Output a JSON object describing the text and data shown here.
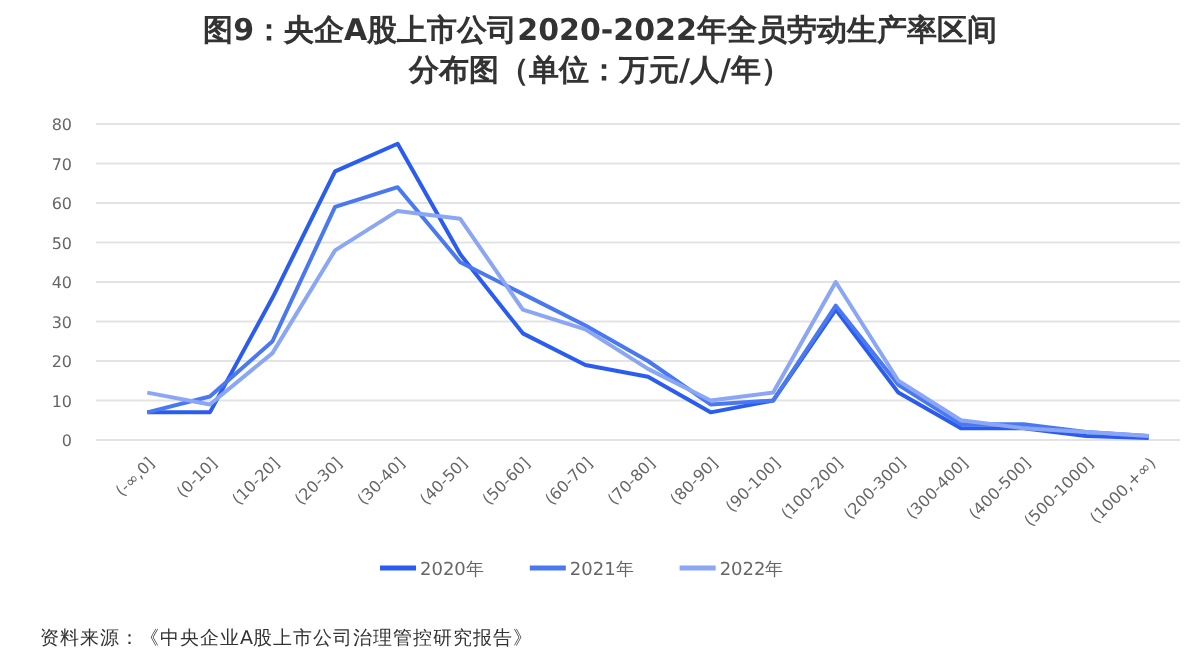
{
  "chart_data": {
    "type": "line",
    "title": "图9：央企A股上市公司2020-2022年全员劳动生产率区间分布图（单位：万元/人/年）",
    "categories": [
      "(-∞,0]",
      "(0-10]",
      "(10-20]",
      "(20-30]",
      "(30-40]",
      "(40-50]",
      "(50-60]",
      "(60-70]",
      "(70-80]",
      "(80-90]",
      "(90-100]",
      "(100-200]",
      "(200-300]",
      "(300-400]",
      "(400-500]",
      "(500-1000]",
      "(1000,+∞)"
    ],
    "series": [
      {
        "name": "2020年",
        "color": "#2a5cf0",
        "values": [
          7,
          7,
          36,
          68,
          75,
          47,
          27,
          19,
          16,
          7,
          10,
          33,
          12,
          3,
          3,
          1,
          0.5
        ]
      },
      {
        "name": "2021年",
        "color": "#4a78f0",
        "values": [
          7,
          11,
          25,
          59,
          64,
          45,
          37,
          29,
          20,
          9,
          10,
          34,
          14,
          4,
          4,
          2,
          1
        ]
      },
      {
        "name": "2022年",
        "color": "#8aa6f5",
        "values": [
          12,
          9,
          22,
          48,
          58,
          56,
          33,
          28,
          18,
          10,
          12,
          40,
          15,
          5,
          3,
          2,
          1
        ]
      }
    ],
    "ylim": [
      0,
      80
    ],
    "yticks": [
      0,
      10,
      20,
      30,
      40,
      50,
      60,
      70,
      80
    ],
    "grid": "y",
    "legend": "bottom",
    "marker": "none",
    "line_style": "solid",
    "annotations": [
      "资料来源：《中央企业A股上市公司治理管控研究报告》"
    ]
  }
}
